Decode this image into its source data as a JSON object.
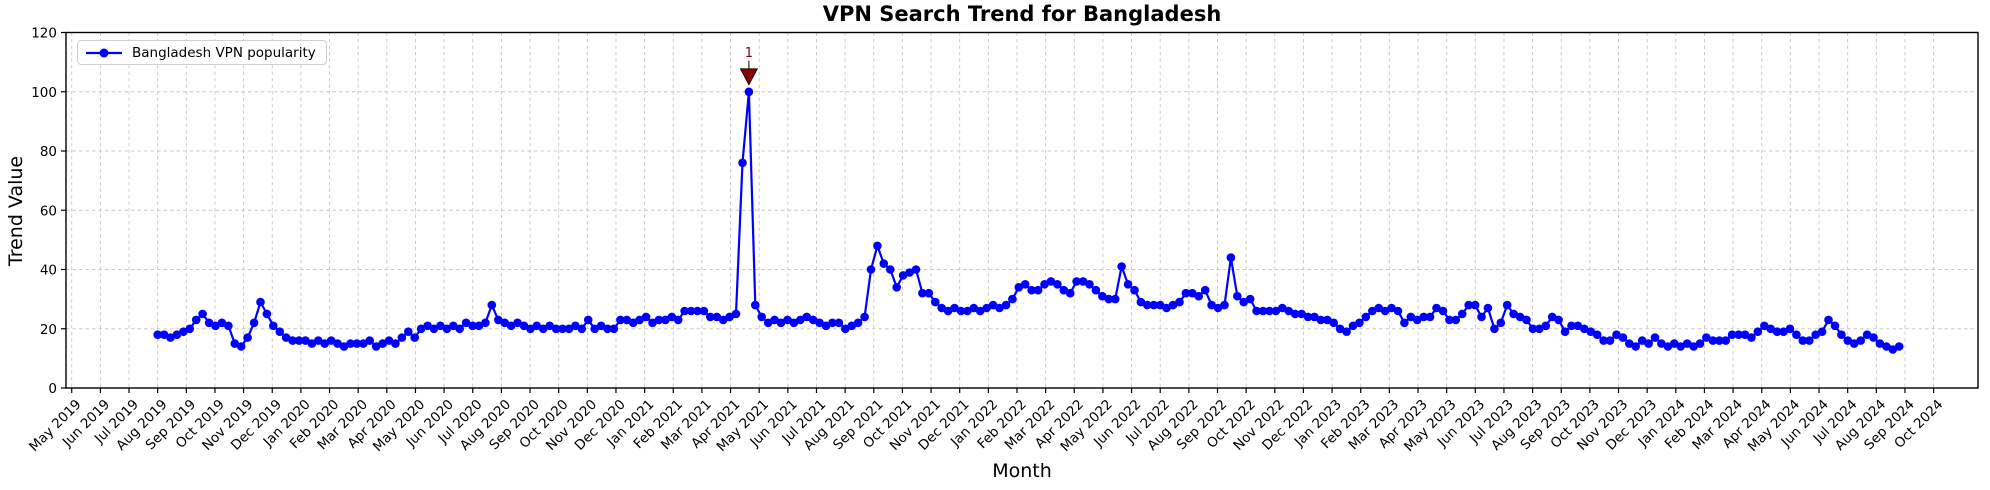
{
  "chart_data": {
    "type": "line",
    "title": "VPN Search Trend for Bangladesh",
    "xlabel": "Month",
    "ylabel": "Trend Value",
    "ylim": [
      0,
      120
    ],
    "yticks": [
      0,
      20,
      40,
      60,
      80,
      100,
      120
    ],
    "grid": true,
    "grid_style": "dashed",
    "legend": {
      "position": "upper-left",
      "entries": [
        {
          "label": "Bangladesh VPN popularity",
          "color": "#0000ff",
          "marker": "circle"
        }
      ]
    },
    "x_tick_labels": [
      "May 2019",
      "Jun 2019",
      "Jul 2019",
      "Aug 2019",
      "Sep 2019",
      "Oct 2019",
      "Nov 2019",
      "Dec 2019",
      "Jan 2020",
      "Feb 2020",
      "Mar 2020",
      "Apr 2020",
      "May 2020",
      "Jun 2020",
      "Jul 2020",
      "Aug 2020",
      "Sep 2020",
      "Oct 2020",
      "Nov 2020",
      "Dec 2020",
      "Jan 2021",
      "Feb 2021",
      "Mar 2021",
      "Apr 2021",
      "May 2021",
      "Jun 2021",
      "Jul 2021",
      "Aug 2021",
      "Sep 2021",
      "Oct 2021",
      "Nov 2021",
      "Dec 2021",
      "Jan 2022",
      "Feb 2022",
      "Mar 2022",
      "Apr 2022",
      "May 2022",
      "Jun 2022",
      "Jul 2022",
      "Aug 2022",
      "Sep 2022",
      "Oct 2022",
      "Nov 2022",
      "Dec 2022",
      "Jan 2023",
      "Feb 2023",
      "Mar 2023",
      "Apr 2023",
      "May 2023",
      "Jun 2023",
      "Jul 2023",
      "Aug 2023",
      "Sep 2023",
      "Oct 2023",
      "Nov 2023",
      "Dec 2023",
      "Jan 2024",
      "Feb 2024",
      "Mar 2024",
      "Apr 2024",
      "May 2024",
      "Jun 2024",
      "Jul 2024",
      "Aug 2024",
      "Sep 2024",
      "Oct 2024"
    ],
    "series": [
      {
        "name": "Bangladesh VPN popularity",
        "color": "#0000ff",
        "cadence": "weekly",
        "start_month_offset": 3.0,
        "end_month_offset": 63.8,
        "values": [
          18,
          18,
          17,
          18,
          19,
          20,
          23,
          25,
          22,
          21,
          22,
          21,
          15,
          14,
          17,
          22,
          29,
          25,
          21,
          19,
          17,
          16,
          16,
          16,
          15,
          16,
          15,
          16,
          15,
          14,
          15,
          15,
          15,
          16,
          14,
          15,
          16,
          15,
          17,
          19,
          17,
          20,
          21,
          20,
          21,
          20,
          21,
          20,
          22,
          21,
          21,
          22,
          28,
          23,
          22,
          21,
          22,
          21,
          20,
          21,
          20,
          21,
          20,
          20,
          20,
          21,
          20,
          23,
          20,
          21,
          20,
          20,
          23,
          23,
          22,
          23,
          24,
          22,
          23,
          23,
          24,
          23,
          26,
          26,
          26,
          26,
          24,
          24,
          23,
          24,
          25,
          76,
          100,
          28,
          24,
          22,
          23,
          22,
          23,
          22,
          23,
          24,
          23,
          22,
          21,
          22,
          22,
          20,
          21,
          22,
          24,
          40,
          48,
          42,
          40,
          34,
          38,
          39,
          40,
          32,
          32,
          29,
          27,
          26,
          27,
          26,
          26,
          27,
          26,
          27,
          28,
          27,
          28,
          30,
          34,
          35,
          33,
          33,
          35,
          36,
          35,
          33,
          32,
          36,
          36,
          35,
          33,
          31,
          30,
          30,
          41,
          35,
          33,
          29,
          28,
          28,
          28,
          27,
          28,
          29,
          32,
          32,
          31,
          33,
          28,
          27,
          28,
          44,
          31,
          29,
          30,
          26,
          26,
          26,
          26,
          27,
          26,
          25,
          25,
          24,
          24,
          23,
          23,
          22,
          20,
          19,
          21,
          22,
          24,
          26,
          27,
          26,
          27,
          26,
          22,
          24,
          23,
          24,
          24,
          27,
          26,
          23,
          23,
          25,
          28,
          28,
          24,
          27,
          20,
          22,
          28,
          25,
          24,
          23,
          20,
          20,
          21,
          24,
          23,
          19,
          21,
          21,
          20,
          19,
          18,
          16,
          16,
          18,
          17,
          15,
          14,
          16,
          15,
          17,
          15,
          14,
          15,
          14,
          15,
          14,
          15,
          17,
          16,
          16,
          16,
          18,
          18,
          18,
          17,
          19,
          21,
          20,
          19,
          19,
          20,
          18,
          16,
          16,
          18,
          19,
          23,
          21,
          18,
          16,
          15,
          16,
          18,
          17,
          15,
          14,
          13,
          14
        ]
      }
    ],
    "annotation": {
      "label": "1",
      "value": 100,
      "color": "#8b0000"
    }
  },
  "colors": {
    "line": "#0000ff",
    "annotation": "#8b0000",
    "grid": "#c8c8c8",
    "axis": "#000000",
    "background": "#ffffff",
    "legend_border": "#cfcfcf"
  }
}
